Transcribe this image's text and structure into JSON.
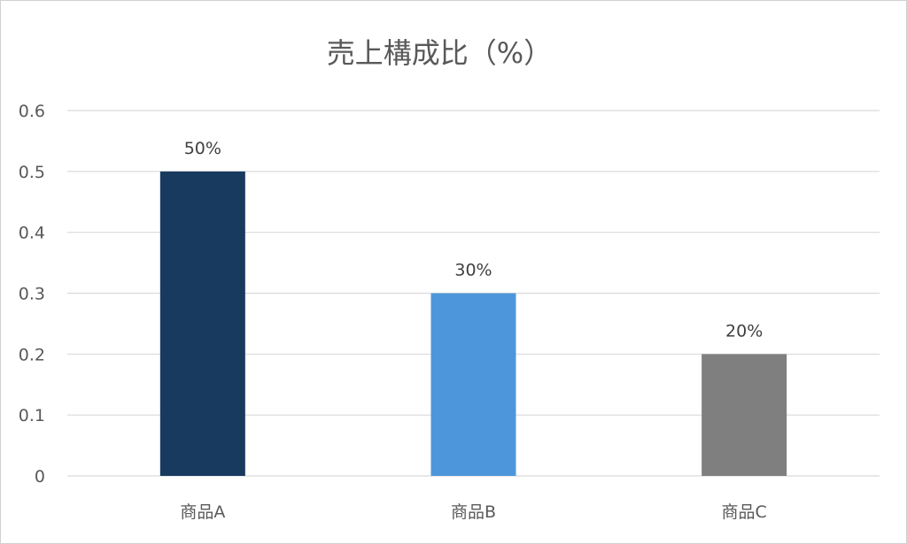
{
  "chart_data": {
    "type": "bar",
    "title": "売上構成比（%）",
    "categories": [
      "商品A",
      "商品B",
      "商品C"
    ],
    "values": [
      0.5,
      0.3,
      0.2
    ],
    "data_labels": [
      "50%",
      "30%",
      "20%"
    ],
    "bar_colors": [
      "#193A5F",
      "#4E96DB",
      "#7F7F7F"
    ],
    "y_ticks": [
      "0",
      "0.1",
      "0.2",
      "0.3",
      "0.4",
      "0.5",
      "0.6"
    ],
    "ylim": [
      0,
      0.6
    ],
    "grid": true,
    "legend": "none"
  }
}
